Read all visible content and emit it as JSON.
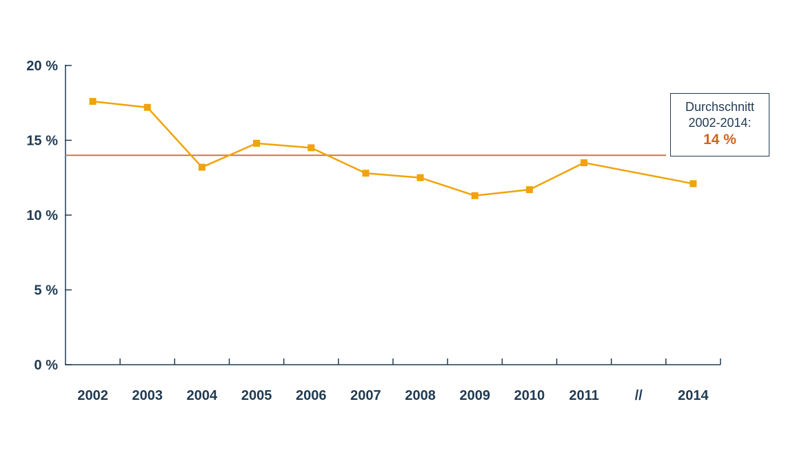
{
  "chart_data": {
    "type": "line",
    "title": "",
    "xlabel": "",
    "ylabel": "",
    "categories": [
      "2002",
      "2003",
      "2004",
      "2005",
      "2006",
      "2007",
      "2008",
      "2009",
      "2010",
      "2011",
      "//",
      "2014"
    ],
    "series": [
      {
        "values": [
          17.6,
          17.2,
          13.2,
          14.8,
          14.5,
          12.8,
          12.5,
          11.3,
          11.7,
          13.5,
          null,
          12.1
        ],
        "color": "#f0a30a"
      }
    ],
    "y_ticks": [
      {
        "value": 0,
        "label": "0 %"
      },
      {
        "value": 5,
        "label": "5 %"
      },
      {
        "value": 10,
        "label": "10 %"
      },
      {
        "value": 15,
        "label": "15 %"
      },
      {
        "value": 20,
        "label": "20 %"
      }
    ],
    "ylim": [
      0,
      20
    ],
    "grid": false,
    "reference_line": {
      "value": 14,
      "color": "#e07030"
    },
    "annotation": {
      "line1": "Durchschnitt",
      "line2": "2002-2014:",
      "value": "14 %",
      "value_color": "#d4621e"
    },
    "axis_color": "#1f3a52",
    "label_color": "#1f3a52"
  }
}
